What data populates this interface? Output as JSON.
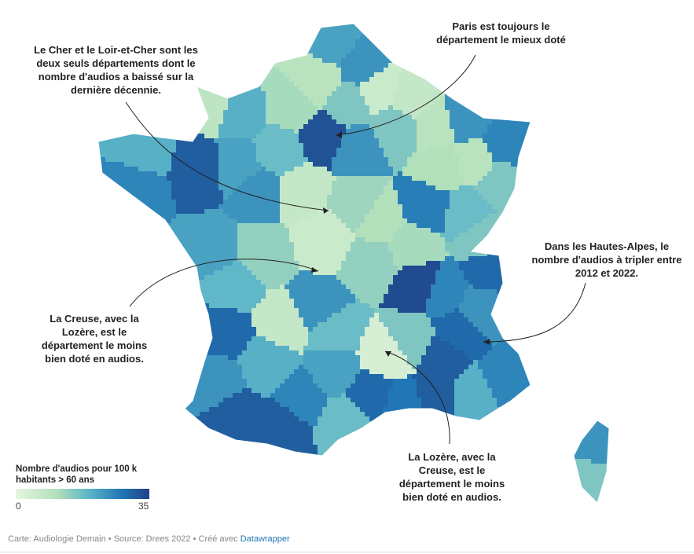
{
  "annotations": {
    "cher": "Le Cher et le Loir-et-Cher sont les deux seuls départements dont le nombre d'audios a baissé sur la dernière décennie.",
    "paris": "Paris est toujours le département le mieux doté",
    "hautes_alpes": "Dans les Hautes-Alpes, le nombre d'audios à tripler entre 2012 et 2022.",
    "creuse": "La Creuse, avec la Lozère, est le département le moins bien doté en audios.",
    "lozere": "La Lozère, avec la Creuse, est le département le moins bien doté en audios."
  },
  "legend": {
    "title": "Nombre d'audios pour 100 k habitants > 60 ans",
    "min": "0",
    "max": "35",
    "colors": [
      "#e6f5e1",
      "#b4e1bb",
      "#5bb4c8",
      "#1f75b4",
      "#223f86"
    ]
  },
  "footer": {
    "text": "Carte: Audiologie Demain • Source: Drees 2022 • Créé avec ",
    "link": "Datawrapper"
  }
}
